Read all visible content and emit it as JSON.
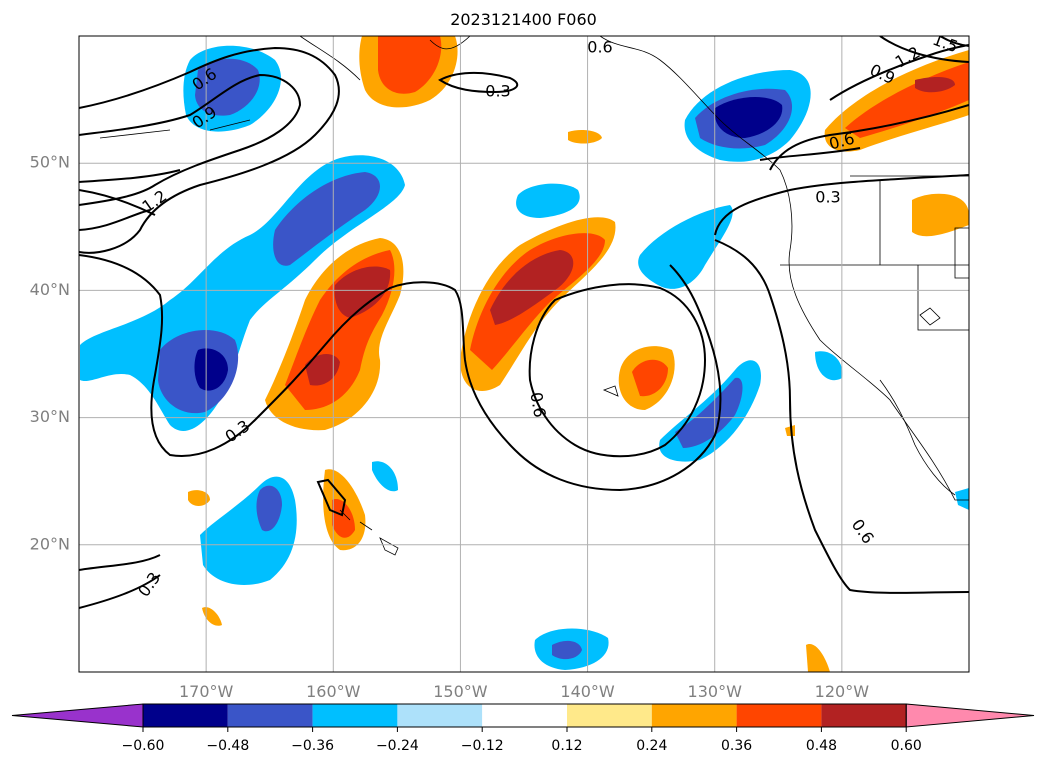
{
  "title": "2023121400 F060",
  "map": {
    "lon_range": [
      -180,
      -110
    ],
    "lat_range": [
      10,
      60
    ],
    "lat_ticks": [
      {
        "value": 20,
        "label": "20°N"
      },
      {
        "value": 30,
        "label": "30°N"
      },
      {
        "value": 40,
        "label": "40°N"
      },
      {
        "value": 50,
        "label": "50°N"
      }
    ],
    "lon_ticks": [
      {
        "value": -170,
        "label": "170°W"
      },
      {
        "value": -160,
        "label": "160°W"
      },
      {
        "value": -150,
        "label": "150°W"
      },
      {
        "value": -140,
        "label": "140°W"
      },
      {
        "value": -130,
        "label": "130°W"
      },
      {
        "value": -120,
        "label": "120°W"
      }
    ],
    "grid": true,
    "contour_labels": [
      "0.3",
      "0.6",
      "0.9",
      "1.2",
      "1.5"
    ]
  },
  "colorbar": {
    "levels": [
      "-0.60",
      "-0.48",
      "-0.36",
      "-0.24",
      "-0.12",
      "0.12",
      "0.24",
      "0.36",
      "0.48",
      "0.60"
    ],
    "colors": [
      "#9932cc",
      "#00008b",
      "#3a55c8",
      "#00bfff",
      "#ade1fa",
      "#ffffff",
      "#ffe98a",
      "#ffa500",
      "#ff4500",
      "#b22222",
      "#ff89ad"
    ]
  }
}
